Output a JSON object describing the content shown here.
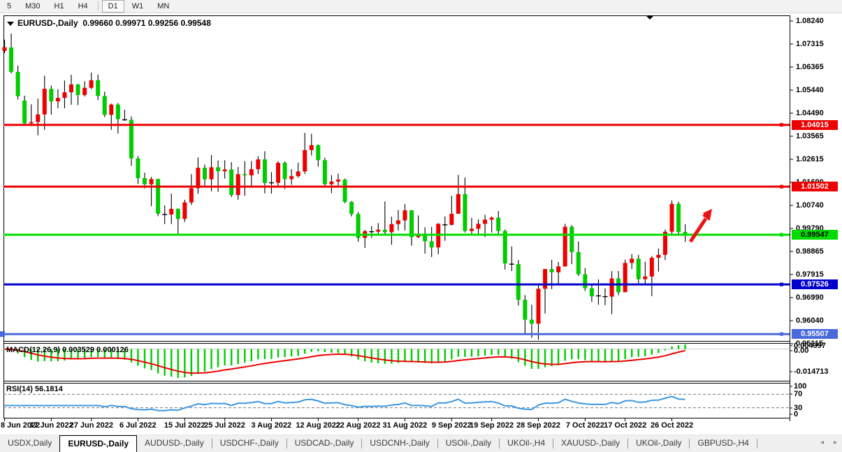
{
  "toolbar": {
    "items": [
      "5",
      "M30",
      "H1",
      "H4",
      "D1",
      "W1",
      "MN"
    ],
    "active": "D1"
  },
  "chart_header": {
    "title": "EURUSD-,Daily",
    "ohlc": "0.99660 0.99971 0.99256 0.99548"
  },
  "chart_data": {
    "type": "candlestick",
    "symbol": "EURUSD-",
    "timeframe": "Daily",
    "ylim": [
      0.95115,
      1.0824
    ],
    "price_ticks": [
      "1.08240",
      "1.07315",
      "1.06365",
      "1.05440",
      "1.04490",
      "1.03565",
      "1.02615",
      "1.01690",
      "1.00740",
      "0.99790",
      "0.98865",
      "0.97915",
      "0.96990",
      "0.96040",
      "0.95115"
    ],
    "candles": [
      [
        1.0702,
        1.0748,
        1.0693,
        1.0717
      ],
      [
        1.0716,
        1.0773,
        1.0611,
        1.0617
      ],
      [
        1.0617,
        1.0642,
        1.0505,
        1.0518
      ],
      [
        1.05,
        1.052,
        1.0399,
        1.0408
      ],
      [
        1.0408,
        1.0485,
        1.0397,
        1.0413
      ],
      [
        1.0413,
        1.0508,
        1.0359,
        1.0444
      ],
      [
        1.0444,
        1.0601,
        1.0381,
        1.0548
      ],
      [
        1.0548,
        1.0561,
        1.0443,
        1.0497
      ],
      [
        1.0497,
        1.0546,
        1.0469,
        1.0511
      ],
      [
        1.0511,
        1.0582,
        1.0469,
        1.0534
      ],
      [
        1.0534,
        1.0605,
        1.0483,
        1.0566
      ],
      [
        1.0566,
        1.0568,
        1.0482,
        1.0523
      ],
      [
        1.0523,
        1.0579,
        1.0517,
        1.0552
      ],
      [
        1.0552,
        1.0614,
        1.0547,
        1.0583
      ],
      [
        1.0583,
        1.0606,
        1.0502,
        1.0519
      ],
      [
        1.0519,
        1.0536,
        1.0433,
        1.0442
      ],
      [
        1.0442,
        1.0488,
        1.0381,
        1.0484
      ],
      [
        1.0484,
        1.049,
        1.0366,
        1.0425
      ],
      [
        1.0425,
        1.0463,
        1.0418,
        1.0422
      ],
      [
        1.0422,
        1.0436,
        1.0235,
        1.0265
      ],
      [
        1.0265,
        1.0275,
        1.0161,
        1.0185
      ],
      [
        1.0185,
        1.0207,
        1.0143,
        1.016
      ],
      [
        1.016,
        1.019,
        1.0071,
        1.0181
      ],
      [
        1.0181,
        1.0183,
        1.003,
        1.004
      ],
      [
        1.004,
        1.0074,
        0.9998,
        1.0037
      ],
      [
        1.0037,
        1.0122,
        0.9998,
        1.006
      ],
      [
        1.006,
        1.0062,
        0.9952,
        1.0019
      ],
      [
        1.0019,
        1.0097,
        1.0007,
        1.0086
      ],
      [
        1.0086,
        1.0201,
        1.0076,
        1.0144
      ],
      [
        1.0144,
        1.0269,
        1.0121,
        1.0227
      ],
      [
        1.0227,
        1.024,
        1.0155,
        1.018
      ],
      [
        1.018,
        1.0279,
        1.0131,
        1.0229
      ],
      [
        1.0229,
        1.0257,
        1.0129,
        1.0213
      ],
      [
        1.0213,
        1.0258,
        1.0183,
        1.022
      ],
      [
        1.022,
        1.025,
        1.0108,
        1.0116
      ],
      [
        1.0116,
        1.023,
        1.0097,
        1.0201
      ],
      [
        1.0201,
        1.0254,
        1.0113,
        1.0196
      ],
      [
        1.0196,
        1.0254,
        1.0145,
        1.0221
      ],
      [
        1.0221,
        1.0274,
        1.0202,
        1.0261
      ],
      [
        1.0261,
        1.0294,
        1.0123,
        1.0165
      ],
      [
        1.0165,
        1.0209,
        1.0122,
        1.0166
      ],
      [
        1.0166,
        1.0254,
        1.0151,
        1.0247
      ],
      [
        1.0247,
        1.0253,
        1.0141,
        1.0181
      ],
      [
        1.0181,
        1.0221,
        1.0158,
        1.0193
      ],
      [
        1.0193,
        1.0248,
        1.0187,
        1.0212
      ],
      [
        1.0212,
        1.0369,
        1.0202,
        1.0299
      ],
      [
        1.0299,
        1.0365,
        1.0277,
        1.0319
      ],
      [
        1.0319,
        1.0322,
        1.0232,
        1.0258
      ],
      [
        1.0258,
        1.0268,
        1.0152,
        1.016
      ],
      [
        1.016,
        1.0197,
        1.0124,
        1.0171
      ],
      [
        1.0171,
        1.0203,
        1.0147,
        1.0179
      ],
      [
        1.0179,
        1.0183,
        1.0083,
        1.0088
      ],
      [
        1.0088,
        1.0092,
        1.0029,
        1.0039
      ],
      [
        1.0039,
        1.0047,
        0.9926,
        0.9942
      ],
      [
        0.9942,
        0.9975,
        0.9901,
        0.9969
      ],
      [
        0.9969,
        0.999,
        0.9942,
        0.9967
      ],
      [
        0.9967,
        1.0002,
        0.9956,
        0.9975
      ],
      [
        0.9975,
        1.009,
        0.9957,
        0.9965
      ],
      [
        0.9965,
        1.0028,
        0.9914,
        0.9998
      ],
      [
        0.9998,
        1.0055,
        0.9972,
        1.0013
      ],
      [
        1.0013,
        1.0079,
        0.9972,
        1.0054
      ],
      [
        1.0054,
        1.0055,
        0.991,
        0.9945
      ],
      [
        0.9945,
        1.0033,
        0.9941,
        0.9952
      ],
      [
        0.9952,
        0.9985,
        0.9878,
        0.9928
      ],
      [
        0.9928,
        0.9987,
        0.9864,
        0.9903
      ],
      [
        0.9903,
        1.0002,
        0.9875,
        0.9999
      ],
      [
        0.9999,
        1.0029,
        0.993,
        0.9995
      ],
      [
        0.9995,
        1.0113,
        0.9992,
        1.004
      ],
      [
        1.004,
        1.0198,
        1.004,
        1.012
      ],
      [
        1.012,
        1.0187,
        0.9964,
        0.997
      ],
      [
        0.997,
        1.0023,
        0.9954,
        0.9979
      ],
      [
        0.9979,
        1.0017,
        0.9955,
        0.9999
      ],
      [
        0.9999,
        1.0036,
        0.9945,
        1.0016
      ],
      [
        1.0016,
        1.0029,
        0.9964,
        1.0024
      ],
      [
        1.0024,
        1.0051,
        0.9955,
        0.997
      ],
      [
        0.997,
        0.9976,
        0.9813,
        0.9838
      ],
      [
        0.9838,
        0.9907,
        0.9807,
        0.9835
      ],
      [
        0.9835,
        0.9852,
        0.9667,
        0.969
      ],
      [
        0.969,
        0.9709,
        0.9554,
        0.9609
      ],
      [
        0.9609,
        0.967,
        0.9536,
        0.9593
      ],
      [
        0.9593,
        0.975,
        0.9528,
        0.9735
      ],
      [
        0.9735,
        0.9816,
        0.9634,
        0.9815
      ],
      [
        0.9815,
        0.9853,
        0.9733,
        0.9802
      ],
      [
        0.9802,
        0.9844,
        0.9752,
        0.9826
      ],
      [
        0.9826,
        0.9999,
        0.9824,
        0.9987
      ],
      [
        0.9987,
        0.9994,
        0.9835,
        0.9884
      ],
      [
        0.9884,
        0.9927,
        0.9787,
        0.9794
      ],
      [
        0.9794,
        0.9819,
        0.9726,
        0.9737
      ],
      [
        0.9737,
        0.975,
        0.9681,
        0.9704
      ],
      [
        0.9704,
        0.9773,
        0.967,
        0.9706
      ],
      [
        0.9706,
        0.9737,
        0.9668,
        0.9703
      ],
      [
        0.9703,
        0.9807,
        0.9632,
        0.9777
      ],
      [
        0.9777,
        0.9807,
        0.9709,
        0.9721
      ],
      [
        0.9721,
        0.9854,
        0.9721,
        0.984
      ],
      [
        0.984,
        0.9876,
        0.9815,
        0.9857
      ],
      [
        0.9857,
        0.9873,
        0.9757,
        0.9774
      ],
      [
        0.9774,
        0.9845,
        0.9756,
        0.9785
      ],
      [
        0.9785,
        0.9868,
        0.9705,
        0.9861
      ],
      [
        0.9861,
        0.9899,
        0.9805,
        0.9873
      ],
      [
        0.9873,
        0.9976,
        0.9852,
        0.9967
      ],
      [
        0.9967,
        1.0094,
        0.9955,
        1.008
      ],
      [
        1.008,
        1.0089,
        0.9959,
        0.9966
      ],
      [
        0.9966,
        0.99971,
        0.99256,
        0.99548
      ]
    ],
    "bull_color": "#ee0000",
    "bear_color": "#00cc00",
    "date_labels": [
      {
        "text": "8 Jun 2022",
        "index": 0
      },
      {
        "text": "17 Jun 2022",
        "index": 7
      },
      {
        "text": "27 Jun 2022",
        "index": 13
      },
      {
        "text": "6 Jul 2022",
        "index": 20
      },
      {
        "text": "15 Jul 2022",
        "index": 27
      },
      {
        "text": "25 Jul 2022",
        "index": 33
      },
      {
        "text": "3 Aug 2022",
        "index": 40
      },
      {
        "text": "12 Aug 2022",
        "index": 47
      },
      {
        "text": "22 Aug 2022",
        "index": 53
      },
      {
        "text": "31 Aug 2022",
        "index": 60
      },
      {
        "text": "9 Sep 2022",
        "index": 67
      },
      {
        "text": "19 Sep 2022",
        "index": 73
      },
      {
        "text": "28 Sep 2022",
        "index": 80
      },
      {
        "text": "7 Oct 2022",
        "index": 87
      },
      {
        "text": "17 Oct 2022",
        "index": 93
      },
      {
        "text": "26 Oct 2022",
        "index": 100
      }
    ],
    "hlines": [
      {
        "price": 1.04015,
        "label": "1.04015",
        "color": "#ee0000",
        "text_color": "#ffffff"
      },
      {
        "price": 1.01502,
        "label": "1.01502",
        "color": "#ee0000",
        "text_color": "#ffffff"
      },
      {
        "price": 0.99547,
        "label": "0.99547",
        "color": "#00dd00",
        "text_color": "#000000"
      },
      {
        "price": 0.97526,
        "label": "0.97526",
        "color": "#0000cc",
        "text_color": "#ffffff"
      },
      {
        "price": 0.95507,
        "label": "0.95507",
        "color": "#4a69dd",
        "text_color": "#ffffff"
      }
    ],
    "arrow": {
      "color": "#ee1111"
    },
    "indicators": {
      "macd": {
        "name": "MACD(12,26,9)",
        "values": "0.003529 0.000126",
        "axis": [
          "0.004397",
          "0.00",
          "-0.014713"
        ],
        "histogram_color": "#00cc00",
        "signal_color": "#ee0000"
      },
      "rsi": {
        "name": "RSI(14)",
        "value": "56.1814",
        "axis": [
          "100",
          "70",
          "30",
          "0"
        ],
        "levels": [
          70,
          30
        ],
        "line_color": "#3b97e3"
      }
    }
  },
  "window_tabs": {
    "items": [
      "USDX,Daily",
      "EURUSD-,Daily",
      "AUDUSD-,Daily",
      "USDCHF-,Daily",
      "USDCAD-,Daily",
      "USDCNH-,Daily",
      "USOil-,Daily",
      "UKOil-,H4",
      "XAUUSD-,Daily",
      "UKOil-,Daily",
      "GBPUSD-,H4"
    ],
    "active": "EURUSD-,Daily"
  }
}
